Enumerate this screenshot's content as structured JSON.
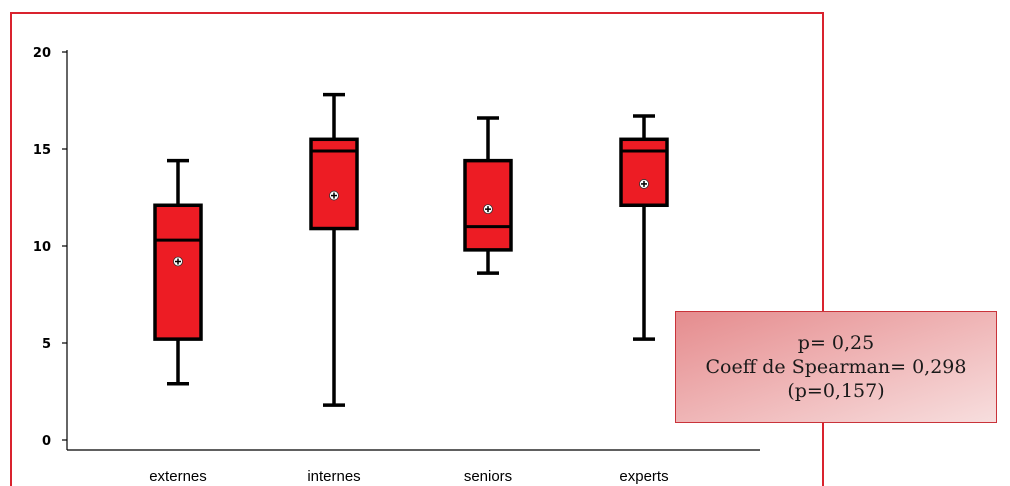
{
  "chart_data": {
    "type": "boxplot",
    "categories": [
      "externes",
      "internes",
      "seniors",
      "experts"
    ],
    "series": [
      {
        "category": "externes",
        "min": 2.9,
        "q1": 5.2,
        "median": 10.3,
        "q3": 12.1,
        "max": 14.4,
        "mean": 9.2
      },
      {
        "category": "internes",
        "min": 1.8,
        "q1": 10.9,
        "median": 14.9,
        "q3": 15.5,
        "max": 17.8,
        "mean": 12.6
      },
      {
        "category": "seniors",
        "min": 8.6,
        "q1": 9.8,
        "median": 11.0,
        "q3": 14.4,
        "max": 16.6,
        "mean": 11.9
      },
      {
        "category": "experts",
        "min": 5.2,
        "q1": 12.1,
        "median": 14.9,
        "q3": 15.5,
        "max": 16.7,
        "mean": 13.2
      }
    ],
    "yticks": [
      0,
      5,
      10,
      15,
      20
    ],
    "ylim": [
      0,
      20
    ],
    "grid": false,
    "colors": {
      "box_fill": "#ed1c24",
      "outline": "#000000",
      "frame": "#d9232e"
    }
  },
  "annotation": {
    "lines": [
      "p= 0,25",
      "Coeff de Spearman= 0,298",
      "(p=0,157)"
    ]
  }
}
